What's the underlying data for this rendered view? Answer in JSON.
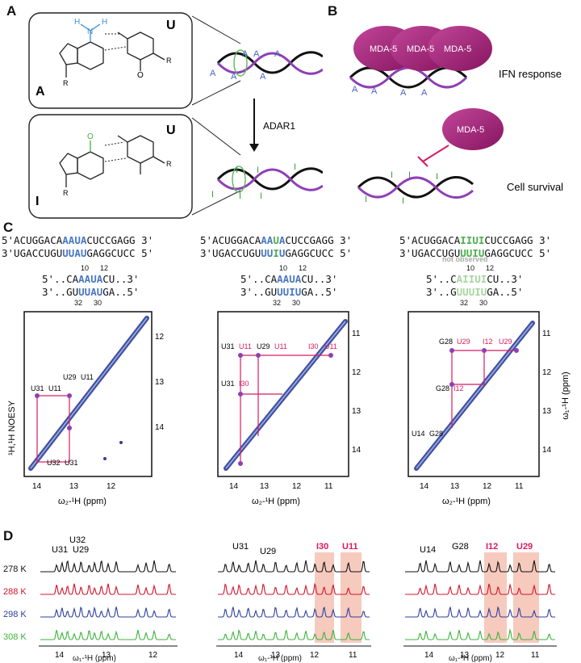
{
  "panels": {
    "a": "A",
    "b": "B",
    "c": "C",
    "d": "D"
  },
  "panel_a": {
    "top_box": {
      "base_left": "A",
      "base_right": "U",
      "r1": "R",
      "r2": "R",
      "h1": "H",
      "h2": "H",
      "n": "N",
      "n2": "N",
      "o": "O"
    },
    "bottom_box": {
      "base_left": "I",
      "base_right": "U",
      "r1": "R",
      "r2": "R"
    },
    "enzyme": "ADAR1",
    "top_helix_letter": "A",
    "bottom_helix_letter": "I"
  },
  "panel_b": {
    "protein": "MDA-5",
    "top_label": "IFN response",
    "bottom_label": "Cell survival",
    "helix_letter_a": "A",
    "helix_letter_i": "I"
  },
  "panel_c": {
    "seqs": [
      {
        "top_pre": "5'ACUGGACA",
        "top_hl": "AAUA",
        "top_post": "CUCCGAGG 3'",
        "bot_pre": "3'UGACCUGU",
        "bot_hl": "UUAU",
        "bot_post": "GAGGCUCC 5'"
      },
      {
        "top_pre": "5'ACUGGACA",
        "top_hl1": "AA",
        "top_g": "U",
        "top_hl2": "A",
        "top_post": "CUCCGAGG 3'",
        "bot_pre": "3'UGACCUGU",
        "bot_hl1": "UU",
        "bot_g": "I",
        "bot_hl2": "U",
        "bot_post": "GAGGCUCC 5'"
      },
      {
        "top_pre": "5'ACUGGACA",
        "top_hl": "IIUI",
        "top_post": "CUCCGAGG 3'",
        "bot_pre": "3'UGACCUGU",
        "bot_hl": "UUIU",
        "bot_post": "GAGGCUCC 5'"
      }
    ],
    "zoom": [
      {
        "top_pre": "5'..CA",
        "top_hl": "AAUA",
        "top_post": "CU..3'",
        "bot_pre": "3'..GU",
        "bot_hl": "UUAU",
        "bot_post": "GA..5'",
        "n_top": [
          "10",
          "12"
        ],
        "n_bot": [
          "32",
          "30"
        ]
      },
      {
        "top_pre": "5'..CA",
        "top_hl": "AAUA",
        "top_post": "CU..3'",
        "bot_pre": "3'..GU",
        "bot_hl": "UUIU",
        "bot_post": "GA..5'",
        "n_top": [
          "10",
          "12"
        ],
        "n_bot": [
          "32",
          "30"
        ]
      },
      {
        "top_pre": "5'..C",
        "top_hl": "AIIUI",
        "top_post": "CU..3'",
        "bot_pre": "3'..G",
        "bot_hl": "UUUIU",
        "bot_post": "GA..5'",
        "n_top": [
          "10",
          "12"
        ],
        "n_bot": [
          "32",
          "30"
        ],
        "note": "not observed"
      }
    ],
    "ylabel": "¹H,¹H NOESY",
    "xlabel": "ω₂-¹H (ppm)",
    "right_ylabel": "ω₁-¹H (ppm)",
    "x_ticks": [
      "14",
      "13",
      "12",
      "11"
    ],
    "y_ticks": [
      "11",
      "12",
      "13",
      "14"
    ],
    "spectra": [
      {
        "labels": [
          "U31",
          "U11",
          "U29",
          "U11",
          "U32",
          "U31"
        ]
      },
      {
        "labels": [
          "U31",
          "U11",
          "U29",
          "U11",
          "I30",
          "U11",
          "U31",
          "I30"
        ]
      },
      {
        "labels": [
          "G28",
          "U29",
          "I12",
          "U29",
          "G28",
          "I12",
          "U14",
          "G28"
        ]
      }
    ]
  },
  "panel_d": {
    "temps": [
      "278 K",
      "288 K",
      "298 K",
      "308 K"
    ],
    "temp_colors": [
      "#111111",
      "#d0142c",
      "#2e3f9e",
      "#3cb33c"
    ],
    "xlabel": "ω₁-¹H (ppm)",
    "ticks1": [
      "14",
      "13",
      "12"
    ],
    "ticks": [
      "14",
      "13",
      "12",
      "11"
    ],
    "s1_labels": [
      "U32",
      "U31",
      "U29"
    ],
    "s2_labels": [
      "U31",
      "U29"
    ],
    "s2_hl": [
      "I30",
      "U11"
    ],
    "s3_labels": [
      "U14",
      "G28"
    ],
    "s3_hl": [
      "I12",
      "U29"
    ]
  }
}
